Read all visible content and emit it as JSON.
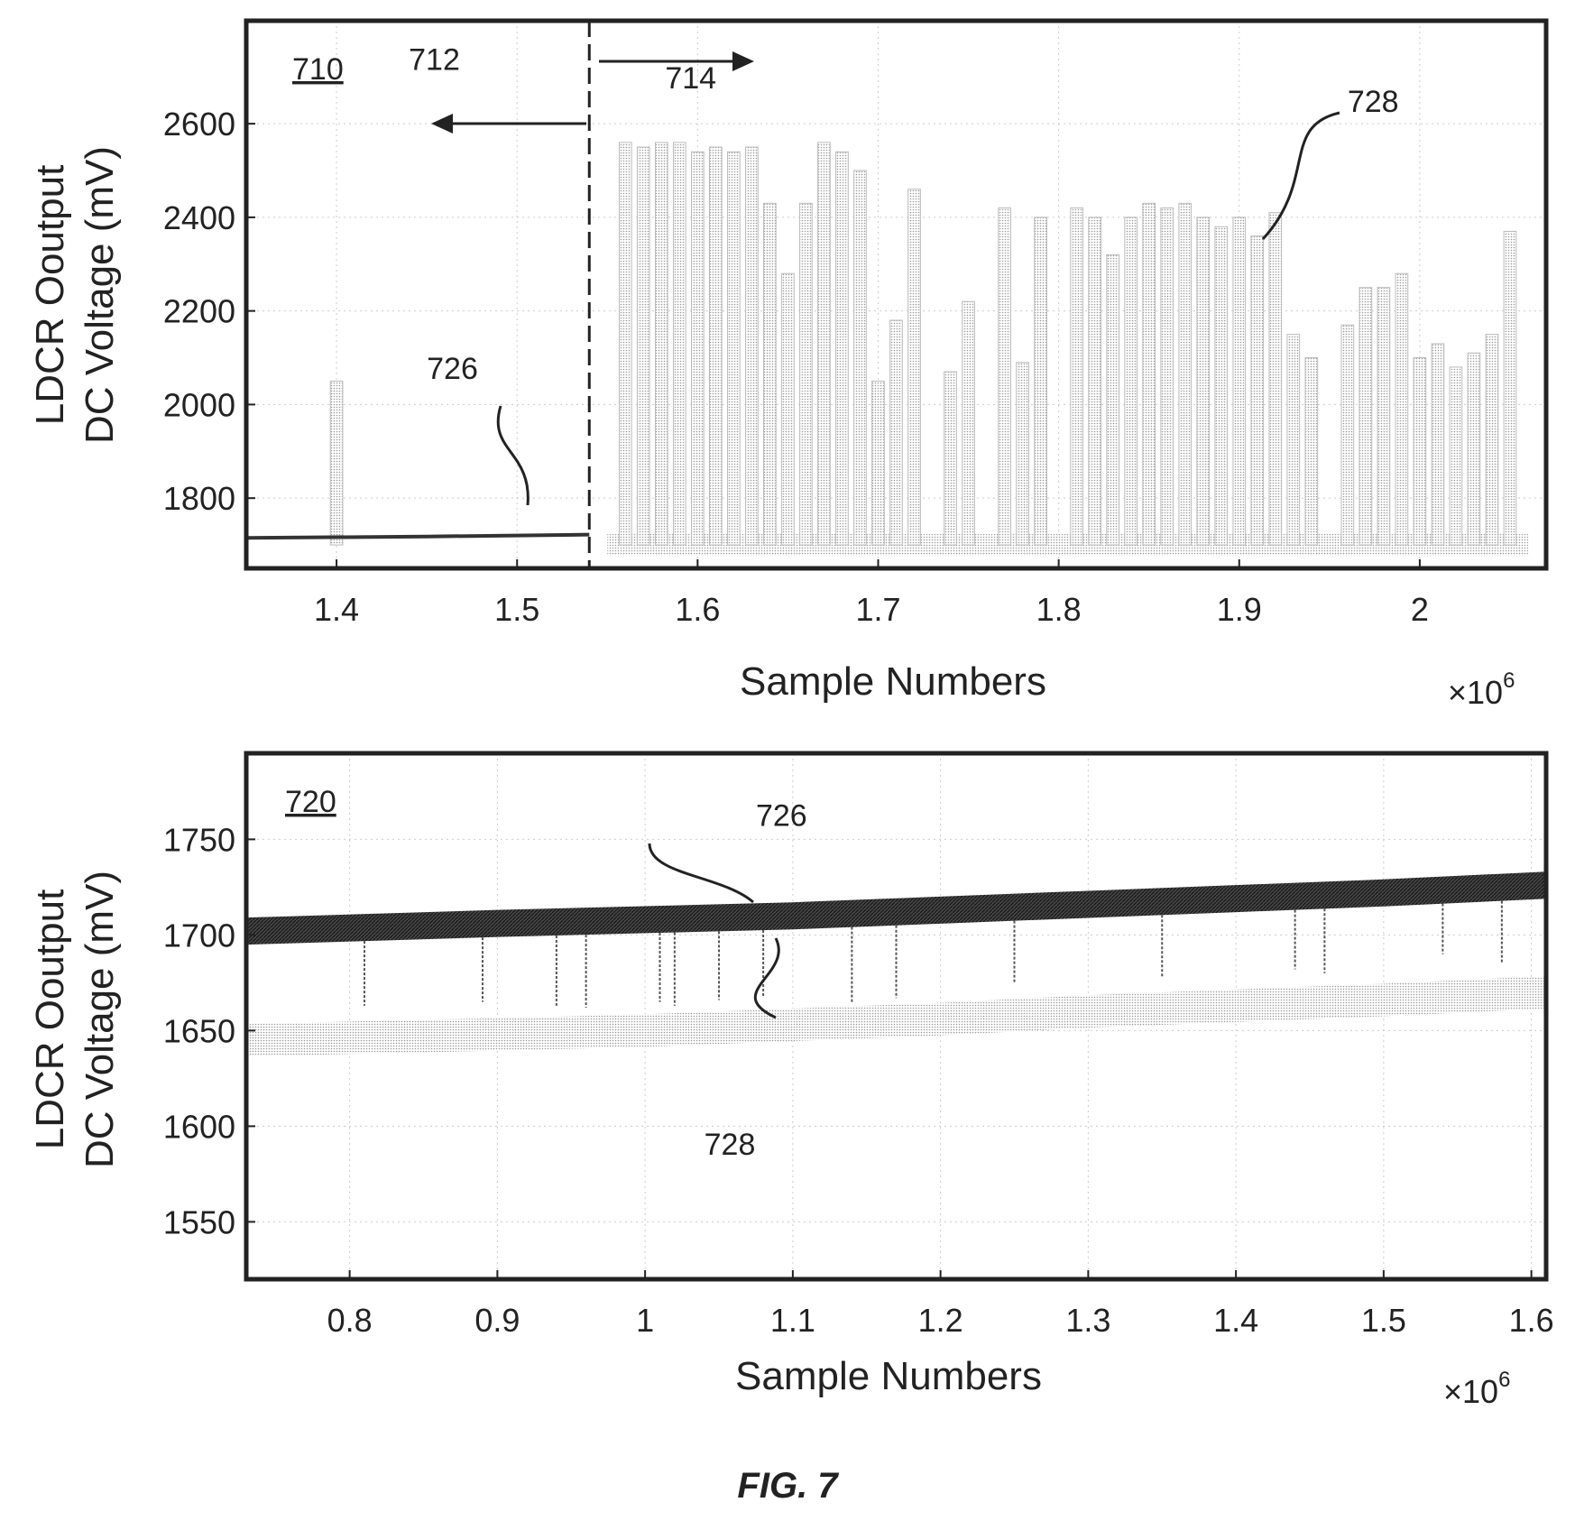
{
  "chart_data": [
    {
      "id": "710",
      "type": "line",
      "label": "710",
      "xlabel": "Sample Numbers",
      "ylabel_line1": "LDCR Ooutput",
      "ylabel_line2": "DC Voltage (mV)",
      "x_multiplier": "×10",
      "x_multiplier_exp": "6",
      "xlim": [
        1.35,
        2.07
      ],
      "ylim": [
        1650,
        2820
      ],
      "xticks": [
        1.4,
        1.5,
        1.6,
        1.7,
        1.8,
        1.9,
        2
      ],
      "xtick_labels": [
        "1.4",
        "1.5",
        "1.6",
        "1.7",
        "1.8",
        "1.9",
        "2"
      ],
      "yticks": [
        1800,
        2000,
        2200,
        2400,
        2600
      ],
      "ytick_labels": [
        "1800",
        "2000",
        "2200",
        "2400",
        "2600"
      ],
      "divider_x": 1.54,
      "series": [
        {
          "id": "726",
          "color": "#333333",
          "points": [
            [
              1.35,
              1715
            ],
            [
              1.45,
              1718
            ],
            [
              1.54,
              1722
            ]
          ]
        },
        {
          "id": "728",
          "color": "#999999",
          "band": [
            1.55,
            2.06,
            1700
          ],
          "spikes": [
            [
              1.4,
              2050
            ],
            [
              1.56,
              2560
            ],
            [
              1.57,
              2550
            ],
            [
              1.58,
              2560
            ],
            [
              1.59,
              2560
            ],
            [
              1.6,
              2540
            ],
            [
              1.61,
              2550
            ],
            [
              1.62,
              2540
            ],
            [
              1.63,
              2550
            ],
            [
              1.64,
              2430
            ],
            [
              1.65,
              2280
            ],
            [
              1.66,
              2430
            ],
            [
              1.67,
              2560
            ],
            [
              1.68,
              2540
            ],
            [
              1.69,
              2500
            ],
            [
              1.7,
              2050
            ],
            [
              1.71,
              2180
            ],
            [
              1.72,
              2460
            ],
            [
              1.74,
              2070
            ],
            [
              1.75,
              2220
            ],
            [
              1.77,
              2420
            ],
            [
              1.78,
              2090
            ],
            [
              1.79,
              2400
            ],
            [
              1.81,
              2420
            ],
            [
              1.82,
              2400
            ],
            [
              1.83,
              2320
            ],
            [
              1.84,
              2400
            ],
            [
              1.85,
              2430
            ],
            [
              1.86,
              2420
            ],
            [
              1.87,
              2430
            ],
            [
              1.88,
              2400
            ],
            [
              1.89,
              2380
            ],
            [
              1.9,
              2400
            ],
            [
              1.91,
              2360
            ],
            [
              1.92,
              2410
            ],
            [
              1.93,
              2150
            ],
            [
              1.94,
              2100
            ],
            [
              1.96,
              2170
            ],
            [
              1.97,
              2250
            ],
            [
              1.98,
              2250
            ],
            [
              1.99,
              2280
            ],
            [
              2.0,
              2100
            ],
            [
              2.01,
              2130
            ],
            [
              2.02,
              2080
            ],
            [
              2.03,
              2110
            ],
            [
              2.04,
              2150
            ],
            [
              2.05,
              2370
            ]
          ]
        }
      ],
      "annotations": [
        {
          "text": "712",
          "x": 1.44,
          "y": 2715
        },
        {
          "text": "714",
          "x": 1.582,
          "y": 2675
        },
        {
          "text": "726",
          "x": 1.45,
          "y": 2055
        },
        {
          "text": "728",
          "x": 1.96,
          "y": 2625
        }
      ]
    },
    {
      "id": "720",
      "type": "line",
      "label": "720",
      "xlabel": "Sample Numbers",
      "ylabel_line1": "LDCR Ooutput",
      "ylabel_line2": "DC Voltage (mV)",
      "x_multiplier": "×10",
      "x_multiplier_exp": "6",
      "xlim": [
        0.73,
        1.61
      ],
      "ylim": [
        1520,
        1795
      ],
      "xticks": [
        0.8,
        0.9,
        1,
        1.1,
        1.2,
        1.3,
        1.4,
        1.5,
        1.6
      ],
      "xtick_labels": [
        "0.8",
        "0.9",
        "1",
        "1.1",
        "1.2",
        "1.3",
        "1.4",
        "1.5",
        "1.6"
      ],
      "yticks": [
        1550,
        1600,
        1650,
        1700,
        1750
      ],
      "ytick_labels": [
        "1550",
        "1600",
        "1650",
        "1700",
        "1750"
      ],
      "series": [
        {
          "id": "726",
          "color": "#333333",
          "points": [
            [
              0.73,
              1702
            ],
            [
              0.9,
              1706
            ],
            [
              1.0,
              1708
            ],
            [
              1.1,
              1710
            ],
            [
              1.2,
              1713
            ],
            [
              1.3,
              1716
            ],
            [
              1.4,
              1719
            ],
            [
              1.5,
              1722
            ],
            [
              1.61,
              1726
            ]
          ],
          "spikes": [
            [
              0.81,
              1663
            ],
            [
              0.89,
              1665
            ],
            [
              0.94,
              1663
            ],
            [
              0.96,
              1662
            ],
            [
              1.01,
              1665
            ],
            [
              1.02,
              1663
            ],
            [
              1.05,
              1666
            ],
            [
              1.08,
              1668
            ],
            [
              1.14,
              1665
            ],
            [
              1.17,
              1667
            ],
            [
              1.25,
              1675
            ],
            [
              1.35,
              1678
            ],
            [
              1.44,
              1682
            ],
            [
              1.46,
              1680
            ],
            [
              1.54,
              1690
            ],
            [
              1.58,
              1685
            ]
          ]
        },
        {
          "id": "728",
          "color": "#aaaaaa",
          "points": [
            [
              0.73,
              1645
            ],
            [
              0.9,
              1648
            ],
            [
              1.0,
              1650
            ],
            [
              1.1,
              1653
            ],
            [
              1.2,
              1656
            ],
            [
              1.3,
              1660
            ],
            [
              1.4,
              1663
            ],
            [
              1.5,
              1666
            ],
            [
              1.61,
              1670
            ]
          ]
        }
      ],
      "annotations": [
        {
          "text": "726",
          "x": 1.075,
          "y": 1757
        },
        {
          "text": "728",
          "x": 1.04,
          "y": 1585
        }
      ]
    }
  ],
  "figure_caption": "FIG. 7"
}
